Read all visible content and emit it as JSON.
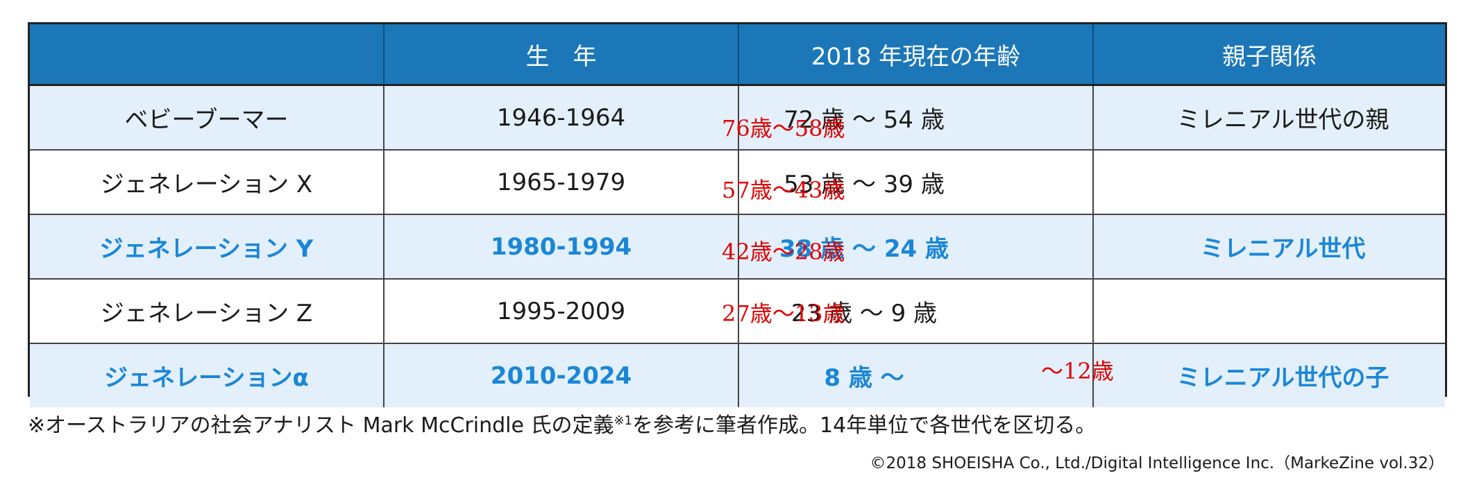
{
  "table": {
    "headers": [
      "",
      "生　年",
      "2018 年現在の年齢",
      "親子関係"
    ],
    "rows": [
      {
        "name": "ベビーブーマー",
        "years": "1946-1964",
        "age": "72 歳 〜 54 歳",
        "red_age": "76歳〜58歳",
        "relation": "ミレニアル世代の親"
      },
      {
        "name": "ジェネレーション X",
        "years": "1965-1979",
        "age": "53 歳 〜 39 歳",
        "red_age": "57歳〜43歳",
        "relation": ""
      },
      {
        "name": "ジェネレーション Y",
        "years": "1980-1994",
        "age": "38 歳 〜 24 歳",
        "red_age": "42歳〜28歳",
        "relation": "ミレニアル世代"
      },
      {
        "name": "ジェネレーション Z",
        "years": "1995-2009",
        "age": "23 歳 〜 9 歳",
        "red_age": "27歳〜13歳",
        "relation": ""
      },
      {
        "name": "ジェネレーションα",
        "years": "2010-2024",
        "age": "8 歳 〜",
        "red_age": "〜12歳",
        "relation": "ミレニアル世代の子"
      }
    ]
  },
  "footnote": {
    "before": "※オーストラリアの社会アナリスト Mark McCrindle 氏の定義",
    "sup": "※1",
    "after": "を参考に筆者作成。14年単位で各世代を区切る。"
  },
  "copyright": "©2018 SHOEISHA Co., Ltd./Digital Intelligence Inc.（MarkeZine vol.32）",
  "colors": {
    "header_bg": "#1b77b8",
    "highlight_text": "#1b86d6",
    "shade_bg": "#e3f0fb",
    "red_annotation": "#e00000"
  }
}
